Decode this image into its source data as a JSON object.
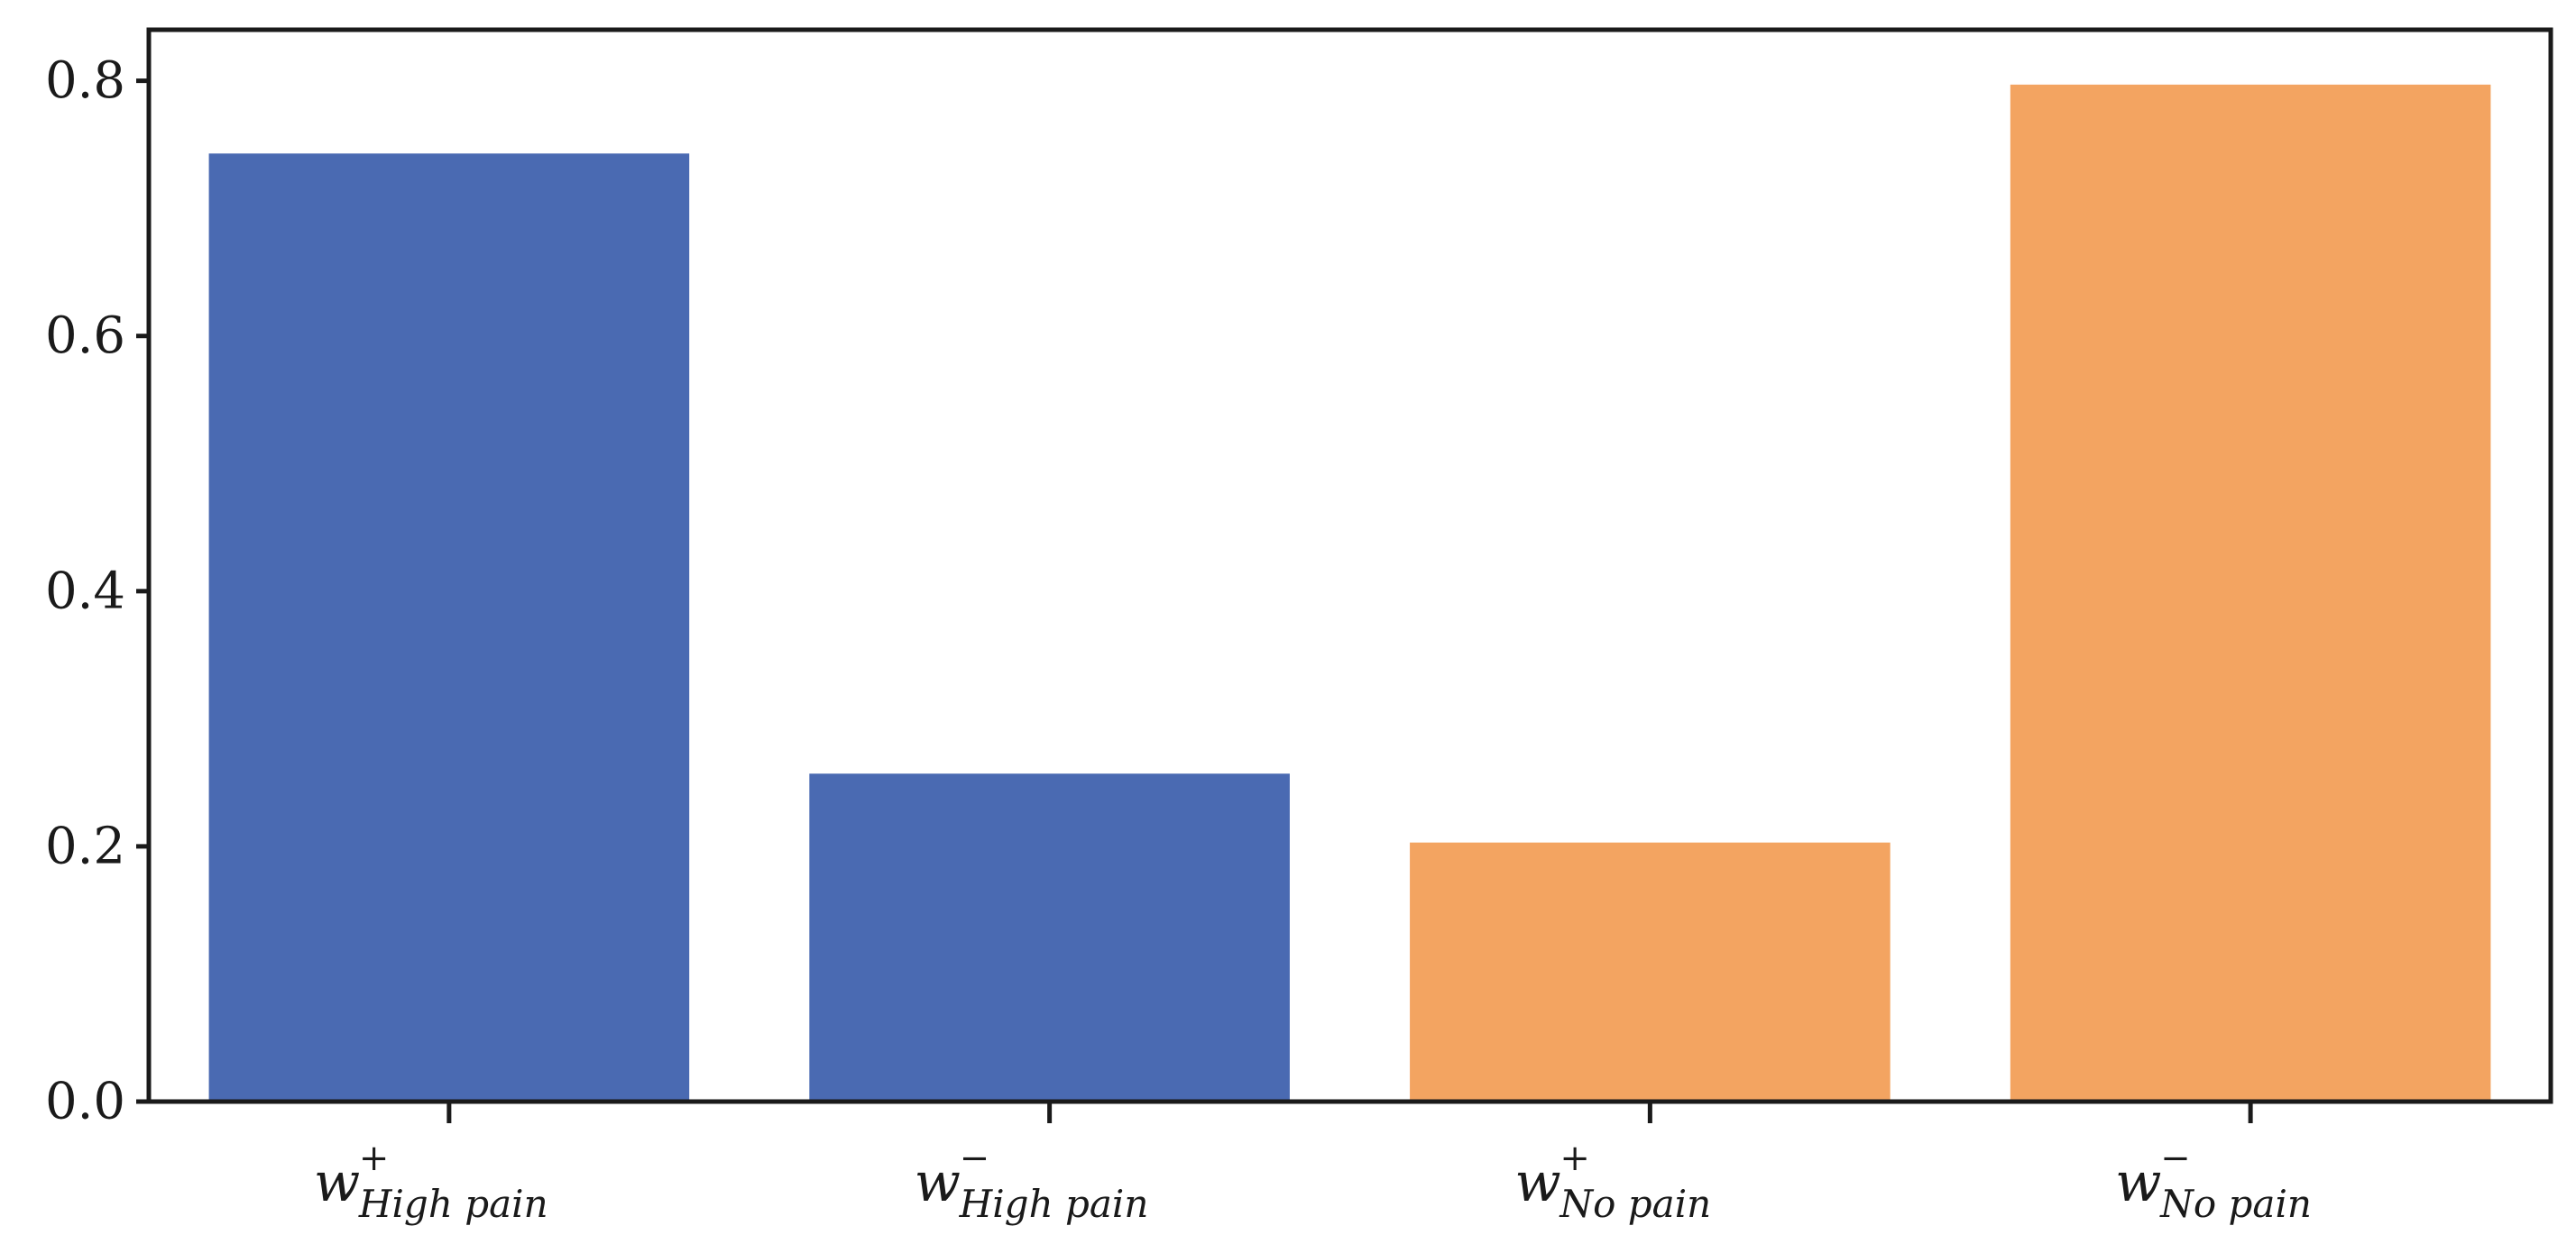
{
  "chart_data": {
    "type": "bar",
    "categories": [
      {
        "base": "w",
        "sup": "+",
        "sub": "High pain"
      },
      {
        "base": "w",
        "sup": "−",
        "sub": "High pain"
      },
      {
        "base": "w",
        "sup": "+",
        "sub": "No pain"
      },
      {
        "base": "w",
        "sup": "−",
        "sub": "No pain"
      }
    ],
    "values": [
      0.743,
      0.257,
      0.203,
      0.797
    ],
    "bar_colors": [
      "#4a6ab2",
      "#4a6ab2",
      "#f3a461",
      "#f3a461"
    ],
    "ylim": [
      0,
      0.84
    ],
    "yticks": [
      "0.0",
      "0.2",
      "0.4",
      "0.6",
      "0.8"
    ],
    "title": "",
    "xlabel": "",
    "ylabel": "",
    "grid": false
  }
}
